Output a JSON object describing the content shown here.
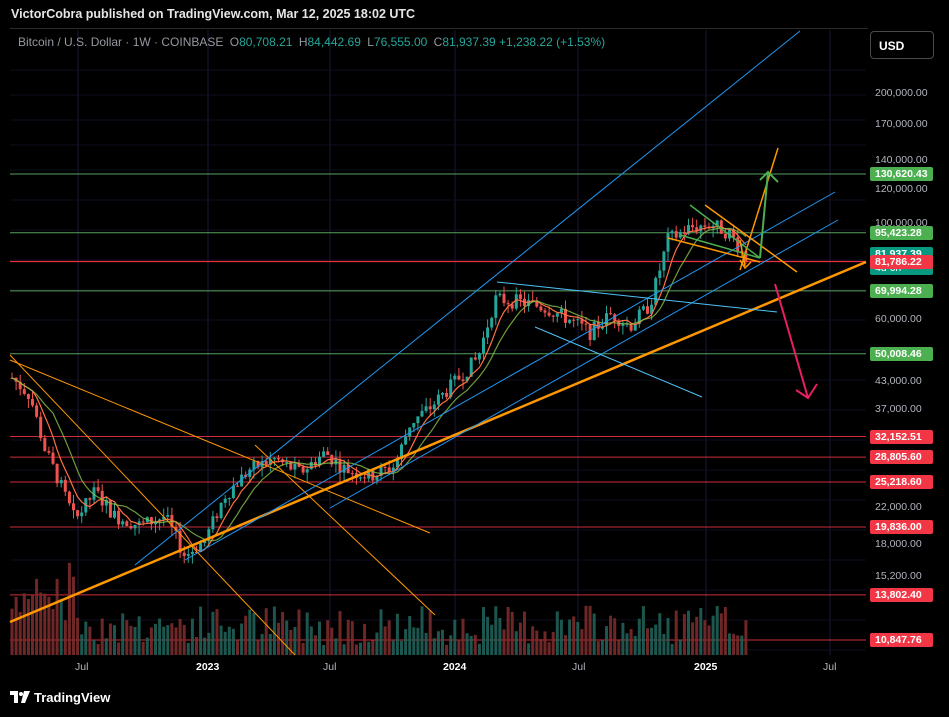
{
  "header": {
    "publisher": "VictorCobra published on TradingView.com, Mar 12, 2025 18:02 UTC"
  },
  "legend": {
    "symbol": "Bitcoin / U.S. Dollar · 1W · COINBASE",
    "open_key": "O",
    "open": "80,708.21",
    "high_key": "H",
    "high": "84,442.69",
    "low_key": "L",
    "low": "76,555.00",
    "close_key": "C",
    "close": "81,937.39",
    "change": "+1,238.22 (+1.53%)"
  },
  "currency": "USD",
  "price_axis": [
    {
      "label": "200,000.00",
      "value": 200000
    },
    {
      "label": "170,000.00",
      "value": 170000
    },
    {
      "label": "140,000.00",
      "value": 140000
    },
    {
      "label": "120,000.00",
      "value": 120000
    },
    {
      "label": "100,000.00",
      "value": 100000
    },
    {
      "label": "60,000.00",
      "value": 60000
    },
    {
      "label": "43,000.00",
      "value": 43000
    },
    {
      "label": "37,000.00",
      "value": 37000
    },
    {
      "label": "22,000.00",
      "value": 22000
    },
    {
      "label": "18,000.00",
      "value": 18000
    },
    {
      "label": "15,200.00",
      "value": 15200
    }
  ],
  "price_tags": [
    {
      "label": "130,620.43",
      "color": "#4caf50",
      "line": "#66bb6a",
      "value": 130620
    },
    {
      "label": "95,423.28",
      "color": "#4caf50",
      "line": "#66bb6a",
      "value": 95423
    },
    {
      "label": "81,937.39",
      "sub": "4d 6h",
      "color": "#089981",
      "line": "#f23645",
      "value": 81937
    },
    {
      "label": "81,786.22",
      "color": "#f23645",
      "line": "#f23645",
      "value": 81786
    },
    {
      "label": "69,994.28",
      "color": "#4caf50",
      "line": "#66bb6a",
      "value": 69994
    },
    {
      "label": "50,008.46",
      "color": "#4caf50",
      "line": "#66bb6a",
      "value": 50008
    },
    {
      "label": "32,152.51",
      "color": "#f23645",
      "line": "#f23645",
      "value": 32152
    },
    {
      "label": "28,805.60",
      "color": "#f23645",
      "line": "#f23645",
      "value": 28805
    },
    {
      "label": "25,218.60",
      "color": "#f23645",
      "line": "#f23645",
      "value": 25218
    },
    {
      "label": "19,836.00",
      "color": "#f23645",
      "line": "#f23645",
      "value": 19836
    },
    {
      "label": "13,802.40",
      "color": "#f23645",
      "line": "#f23645",
      "value": 13802
    },
    {
      "label": "10,847.76",
      "color": "#f23645",
      "line": "#f23645",
      "value": 10847
    }
  ],
  "time_axis": [
    {
      "label": "Jul",
      "bold": false
    },
    {
      "label": "2023",
      "bold": true
    },
    {
      "label": "Jul",
      "bold": false
    },
    {
      "label": "2024",
      "bold": true
    },
    {
      "label": "Jul",
      "bold": false
    },
    {
      "label": "2025",
      "bold": true
    },
    {
      "label": "Jul",
      "bold": false
    }
  ],
  "footer": {
    "brand": "TradingView"
  },
  "colors": {
    "up": "#26a69a",
    "down": "#ef5350",
    "channel": "#2196f3",
    "trend": "#ff9800",
    "arrow_up": "#4caf50",
    "arrow_down": "#e91e63"
  }
}
